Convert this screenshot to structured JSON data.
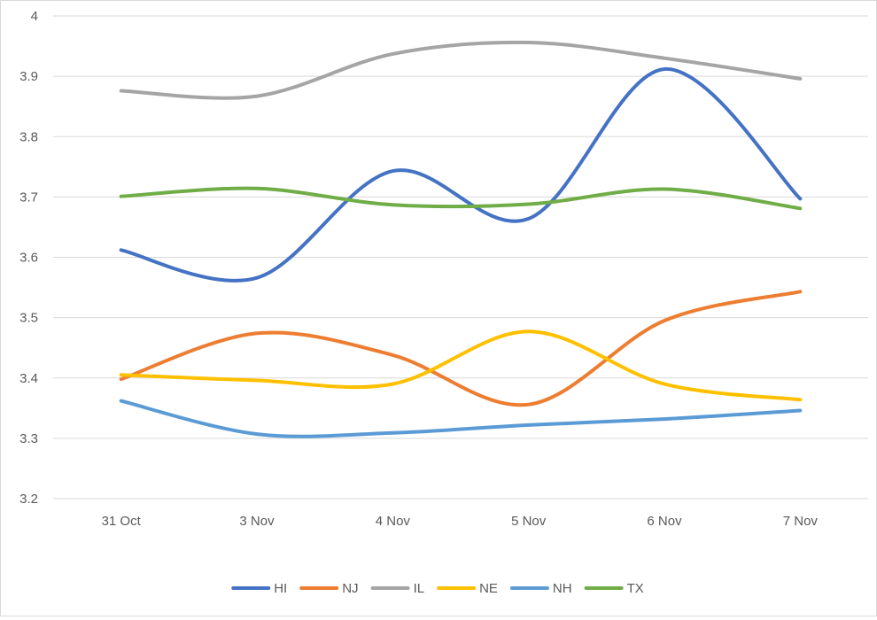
{
  "chart_data": {
    "type": "line",
    "smooth": true,
    "title": "",
    "xlabel": "",
    "ylabel": "",
    "categories": [
      "31 Oct",
      "3 Nov",
      "4 Nov",
      "5 Nov",
      "6 Nov",
      "7 Nov"
    ],
    "ylim": [
      3.2,
      4.0
    ],
    "yticks": [
      "3.2",
      "3.3",
      "3.4",
      "3.5",
      "3.6",
      "3.7",
      "3.8",
      "3.9",
      "4"
    ],
    "grid": true,
    "legend_position": "bottom",
    "series": [
      {
        "name": "HI",
        "color": "#4472c4",
        "values": [
          3.612,
          3.566,
          3.743,
          3.664,
          3.912,
          3.697
        ]
      },
      {
        "name": "NJ",
        "color": "#ed7d31",
        "values": [
          3.398,
          3.474,
          3.438,
          3.356,
          3.495,
          3.543
        ]
      },
      {
        "name": "IL",
        "color": "#a5a5a5",
        "values": [
          3.876,
          3.867,
          3.937,
          3.956,
          3.93,
          3.896
        ]
      },
      {
        "name": "NE",
        "color": "#ffc000",
        "values": [
          3.405,
          3.396,
          3.39,
          3.477,
          3.39,
          3.364
        ]
      },
      {
        "name": "NH",
        "color": "#5b9bd5",
        "values": [
          3.362,
          3.307,
          3.309,
          3.322,
          3.332,
          3.346
        ]
      },
      {
        "name": "TX",
        "color": "#70ad47",
        "values": [
          3.701,
          3.714,
          3.687,
          3.688,
          3.713,
          3.681
        ]
      }
    ]
  }
}
